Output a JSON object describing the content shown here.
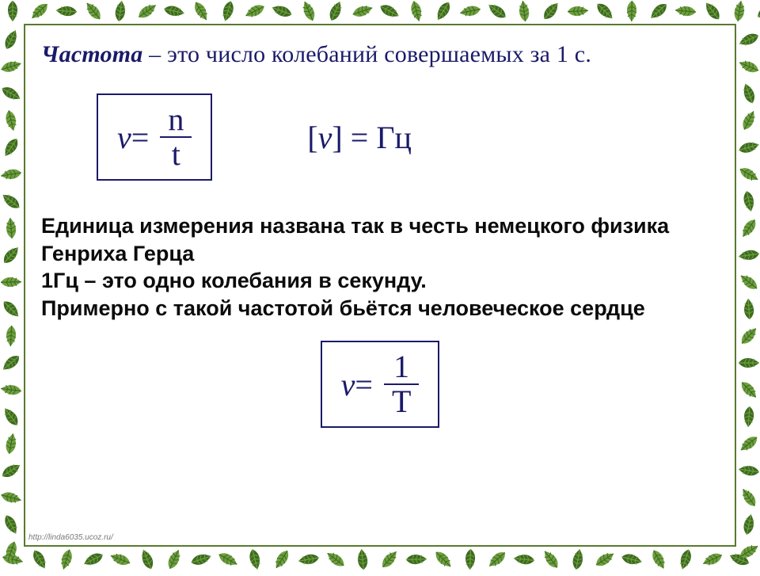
{
  "title": {
    "emphasis": "Частота",
    "rest": " – это число колебаний совершаемых за 1 с."
  },
  "formula_main": {
    "lhs": "v",
    "eq": " = ",
    "numerator": "n",
    "denominator": "t"
  },
  "unit": {
    "open": "[",
    "var": "v",
    "close": "] = ",
    "value": "Гц"
  },
  "body": {
    "line1": "Единица измерения  названа  так в честь немецкого физика Генриха Герца",
    "line2": "1Гц – это одно колебания в секунду.",
    "line3": "Примерно с такой частотой бьётся  человеческое сердце"
  },
  "formula_period": {
    "lhs": "v",
    "eq": " = ",
    "numerator": "1",
    "denominator": "T"
  },
  "footer": "http://linda6035.ucoz.ru/",
  "style": {
    "border_leaf_dark": "#3d6b1f",
    "border_leaf_light": "#6fa040",
    "inner_border": "#5a7a2e",
    "formula_color": "#1a1a6a",
    "text_color": "#0b0b0b",
    "background": "#ffffff",
    "title_fontsize": 30,
    "formula_fontsize": 40,
    "body_fontsize": 27
  }
}
